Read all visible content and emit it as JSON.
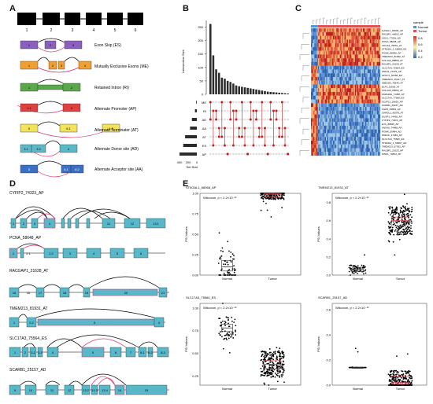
{
  "panels": {
    "A": "A",
    "B": "B",
    "C": "C",
    "D": "D",
    "E": "E"
  },
  "panel_a": {
    "exon_numbers": [
      "1",
      "2",
      "3",
      "4",
      "5",
      "6"
    ],
    "events": [
      {
        "label": "Exon Skip (ES)",
        "exons": [
          "1",
          "2",
          "3"
        ]
      },
      {
        "label": "Mutually Exclusive Exons (ME)",
        "exons": [
          "1",
          "2",
          "3",
          "4"
        ]
      },
      {
        "label": "Retained Intron (RI)",
        "exons": [
          "1",
          "2"
        ]
      },
      {
        "label": "Alternate Promoter (AP)",
        "exons": [
          "1.1",
          "2"
        ]
      },
      {
        "label": "Alternate Terminator (AT)",
        "exons": [
          "5",
          "6.1",
          "6.2"
        ]
      },
      {
        "label": "Alternate Donor site (AD)",
        "exons": [
          "3.1",
          "3.2",
          "4"
        ]
      },
      {
        "label": "Alternate Acceptor site (AA)",
        "exons": [
          "5",
          "6.1",
          "6.2"
        ]
      }
    ]
  },
  "panel_b": {
    "chart_data": {
      "type": "bar",
      "ylabel": "Intersection Size",
      "yticks": [
        "0",
        "50",
        "100",
        "150",
        "200",
        "250"
      ],
      "ylim": [
        0,
        275
      ],
      "values": [
        262,
        145,
        93,
        80,
        62,
        58,
        50,
        46,
        40,
        33,
        30,
        28,
        26,
        24,
        22,
        20,
        18,
        16,
        14,
        12,
        10,
        9,
        8,
        7,
        6,
        5,
        4,
        3
      ],
      "sets": [
        "ME",
        "RI",
        "AD",
        "AA",
        "AT",
        "ES",
        "AP"
      ],
      "set_sizes": [
        5,
        15,
        40,
        55,
        95,
        110,
        140
      ],
      "set_size_label": "Set Size",
      "set_size_ticks": [
        "400",
        "200",
        "0"
      ]
    }
  },
  "panel_c": {
    "legend_title": "sample",
    "legend_items": [
      "Normal",
      "Tumor"
    ],
    "scale_ticks": [
      "0.8",
      "0.6",
      "0.4",
      "0.2"
    ],
    "row_labels": [
      "GAS2L1_83606_AP",
      "RALBP1_44602_AP",
      "SGK1_77256_AD",
      "PCNA_58648_AP",
      "CDCA3_79551_AT",
      "STRADA_1_68080_AD",
      "POMK_88946_AP",
      "TMEM213_81932_AT",
      "COL4A6_88858_AT",
      "RALBP1_21628_AT",
      "SLC17A3_75564_ES",
      "ZNF24_47375_AP",
      "APOC1_50358_ES",
      "TMEM213_25127_AT",
      "UBE2D3_75546_AT",
      "ELF3_10503_AT",
      "COL4A6_89669_AT",
      "FAM118A_71368_AP",
      "SLC17A3_77568_ES",
      "SCAF11_20653_AP",
      "SCRIB1_25157_AD",
      "FGD5_69894_AP",
      "CHRDL1_60076_AT",
      "DUSP1_74436_AP",
      "CYFIP2_74323_AP",
      "EYA_89825_AP",
      "ANXA6_74488_AP",
      "POMK_59484_AD",
      "PDE4C_37469_AP",
      "SLC17A3_75566_ES",
      "STRADA_1_58487_AD",
      "TMEM213_67932_AP",
      "RALBP1_21625_AP",
      "WNK1_70834_AP"
    ]
  },
  "panel_d": {
    "genes": [
      {
        "name": "CYFIP2_74323_AP",
        "exons": [
          "1",
          "2",
          "3",
          "4",
          "11",
          "12",
          "13.1"
        ]
      },
      {
        "name": "PCNA_58648_AP",
        "exons": [
          "1",
          "2.1",
          "2.2",
          "3",
          "4",
          "5",
          "6",
          "7"
        ]
      },
      {
        "name": "RACGAP1_21628_AT",
        "exons": [
          "15",
          "16",
          "17",
          "18",
          "19",
          "20",
          "21"
        ]
      },
      {
        "name": "TMEM213_81931_AT",
        "exons": [
          "1",
          "2.2",
          "3",
          "4"
        ]
      },
      {
        "name": "SLC17A3_75564_ES",
        "exons": [
          "1",
          "2",
          "3.1",
          "3.2",
          "4",
          "5",
          "6",
          "7",
          "8.1",
          "8.2",
          "8.3"
        ]
      },
      {
        "name": "SCARB1_25157_AD",
        "exons": [
          "9",
          "10",
          "11",
          "12",
          "13.2",
          "13.3",
          "13.4",
          "14",
          "15"
        ]
      }
    ]
  },
  "panel_e": {
    "plots": [
      {
        "title": "ST6GAL1_68068_AP",
        "stat": "Wilcoxon, p < 2.2×10⁻¹⁶",
        "ylabel": "PSI Values",
        "yticks": [
          "1.00",
          "0.75",
          "0.50",
          "0.25",
          "0.00"
        ],
        "groups": [
          "Normal",
          "Tumor"
        ],
        "chart_data": {
          "type": "box",
          "categories": [
            "Normal",
            "Tumor"
          ],
          "median": [
            0.1,
            0.99
          ],
          "q1": [
            0.05,
            0.96
          ],
          "q3": [
            0.18,
            1.0
          ],
          "ylim": [
            0,
            1
          ]
        }
      },
      {
        "title": "TMEM213_81932_AT",
        "stat": "Wilcoxon, p < 2.2×10⁻¹⁶",
        "ylabel": "PSI Values",
        "yticks": [
          "0.8",
          "0.6",
          "0.4",
          "0.2",
          "0.0"
        ],
        "groups": [
          "Normal",
          "Tumor"
        ],
        "chart_data": {
          "type": "box",
          "categories": [
            "Normal",
            "Tumor"
          ],
          "median": [
            0.06,
            0.6
          ],
          "q1": [
            0.04,
            0.54
          ],
          "q3": [
            0.07,
            0.64
          ],
          "ylim": [
            0,
            0.9
          ]
        }
      },
      {
        "title": "SLC17A3_75564_ES",
        "stat": "Wilcoxon, p < 2.2×10⁻¹⁶",
        "ylabel": "PSI Values",
        "yticks": [
          "1.00",
          "0.75",
          "0.50",
          "0.25"
        ],
        "groups": [
          "Normal",
          "Tumor"
        ],
        "chart_data": {
          "type": "box",
          "categories": [
            "Normal",
            "Tumor"
          ],
          "median": [
            0.78,
            0.38
          ],
          "q1": [
            0.74,
            0.33
          ],
          "q3": [
            0.82,
            0.42
          ],
          "ylim": [
            0.15,
            1.05
          ]
        }
      },
      {
        "title": "SCARB1_25157_AD",
        "stat": "Wilcoxon, p < 2.2×10⁻¹⁶",
        "ylabel": "PSI Values",
        "yticks": [
          "0.6",
          "0.4",
          "0.2",
          "0.0"
        ],
        "groups": [
          "Normal",
          "Tumor"
        ],
        "chart_data": {
          "type": "box",
          "categories": [
            "Normal",
            "Tumor"
          ],
          "median": [
            0.14,
            0.02
          ],
          "q1": [
            0.14,
            0.01
          ],
          "q3": [
            0.14,
            0.07
          ],
          "ylim": [
            0,
            0.65
          ]
        }
      }
    ]
  }
}
